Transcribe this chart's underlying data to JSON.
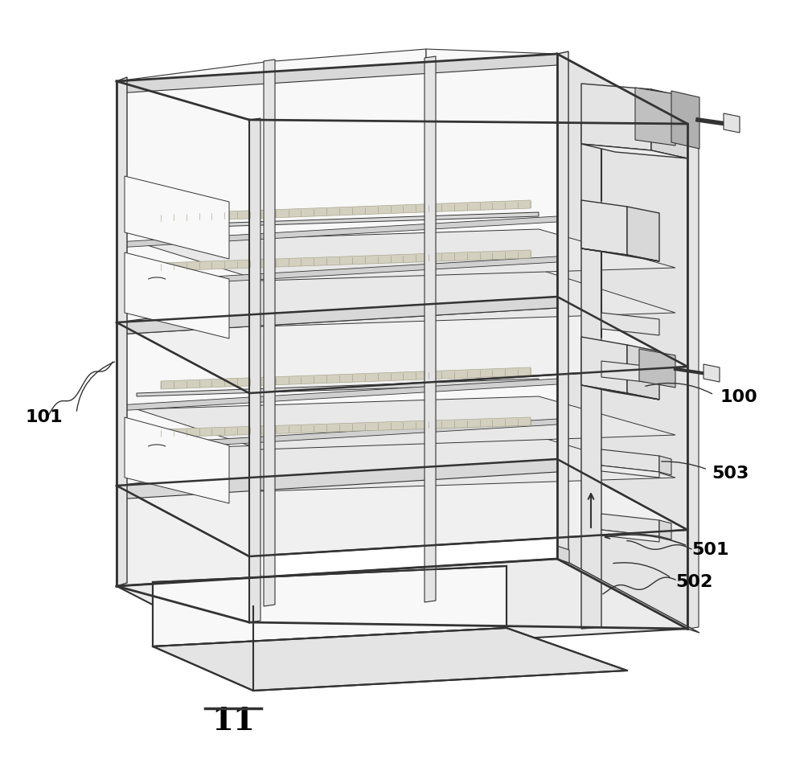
{
  "bg_color": "#ffffff",
  "lc": "#333333",
  "lw": 1.0,
  "fill_white": "#ffffff",
  "fill_light": "#f0f0f0",
  "fill_med": "#e0e0e0",
  "fill_dark": "#cccccc",
  "fill_darker": "#b8b8b8",
  "fill_side": "#e8e8e8",
  "fill_top_box": "#dcdcdc",
  "fill_panel": "#f5f5f5"
}
